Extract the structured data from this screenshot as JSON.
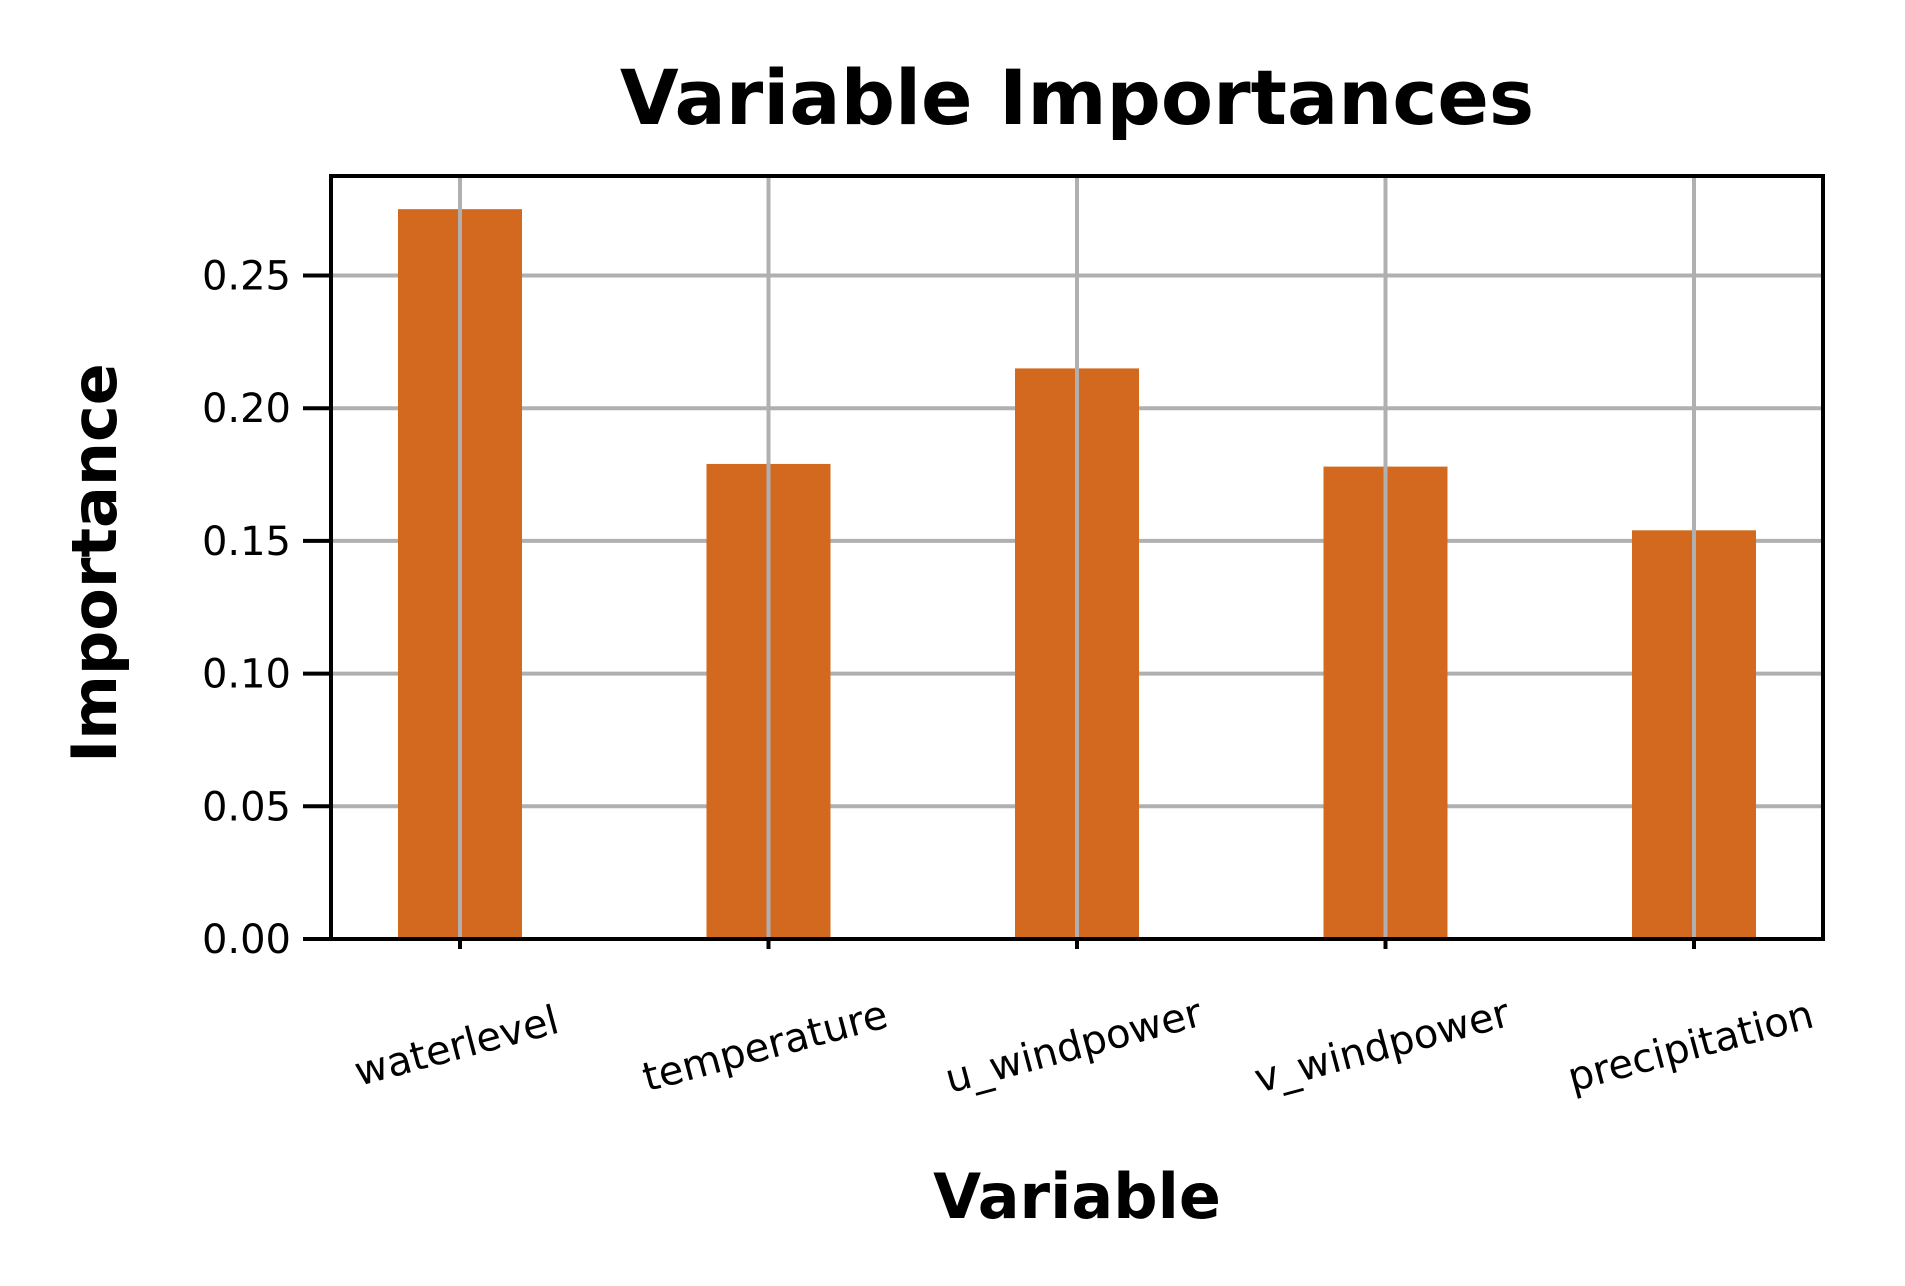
{
  "chart_data": {
    "type": "bar",
    "title": "Variable Importances",
    "xlabel": "Variable",
    "ylabel": "Importance",
    "categories": [
      "waterlevel",
      "temperature",
      "u_windpower",
      "v_windpower",
      "precipitation"
    ],
    "values": [
      0.275,
      0.179,
      0.215,
      0.178,
      0.154
    ],
    "ylim": [
      0,
      0.2875
    ],
    "yticks": [
      "0.00",
      "0.05",
      "0.10",
      "0.15",
      "0.20",
      "0.25"
    ],
    "grid": true,
    "bar_color": "#D2691E",
    "grid_color": "#b0b0b0"
  }
}
